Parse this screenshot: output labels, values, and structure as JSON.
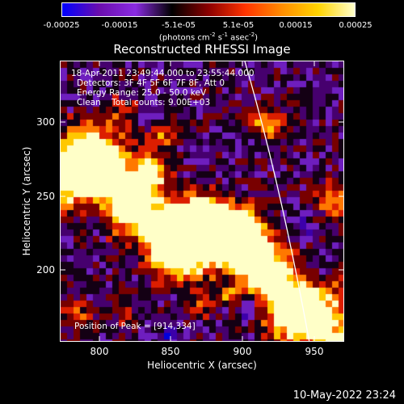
{
  "colorbar": {
    "ticks": [
      "-0.00025",
      "-0.00015",
      "-5.1e-05",
      "5.1e-05",
      "0.00015",
      "0.00025"
    ],
    "unit_prefix": "(photons cm",
    "unit_exp1": "-2",
    "unit_mid": " s",
    "unit_exp2": "-1",
    "unit_suffix": " asec",
    "unit_exp3": "-2",
    "unit_close": ")",
    "colors": [
      "#0000ff",
      "#6a0dad",
      "#8a2be2",
      "#000000",
      "#8b0000",
      "#ff3300",
      "#ff8c00",
      "#ffd400",
      "#ffffcc"
    ]
  },
  "title": "Reconstructed RHESSI Image",
  "info": {
    "time": "18-Apr-2011 23:49:44.000 to 23:55:44.000",
    "detectors": "Detectors: 3F 4F 5F 6F 7F 8F, Att 0",
    "energy": "Energy Range: 25.0 - 50.0 keV",
    "clean": "Clean    Total counts: 9.00E+03"
  },
  "peak": "Position of Peak = [914,334]",
  "axes": {
    "xlabel": "Heliocentric X (arcsec)",
    "ylabel": "Heliocentric Y (arcsec)",
    "xticks": [
      "800",
      "850",
      "900",
      "950"
    ],
    "yticks": [
      "300",
      "250",
      "200"
    ],
    "xrange": [
      775,
      966
    ],
    "yrange": [
      148,
      336
    ]
  },
  "timestamp": "10-May-2022 23:24"
}
